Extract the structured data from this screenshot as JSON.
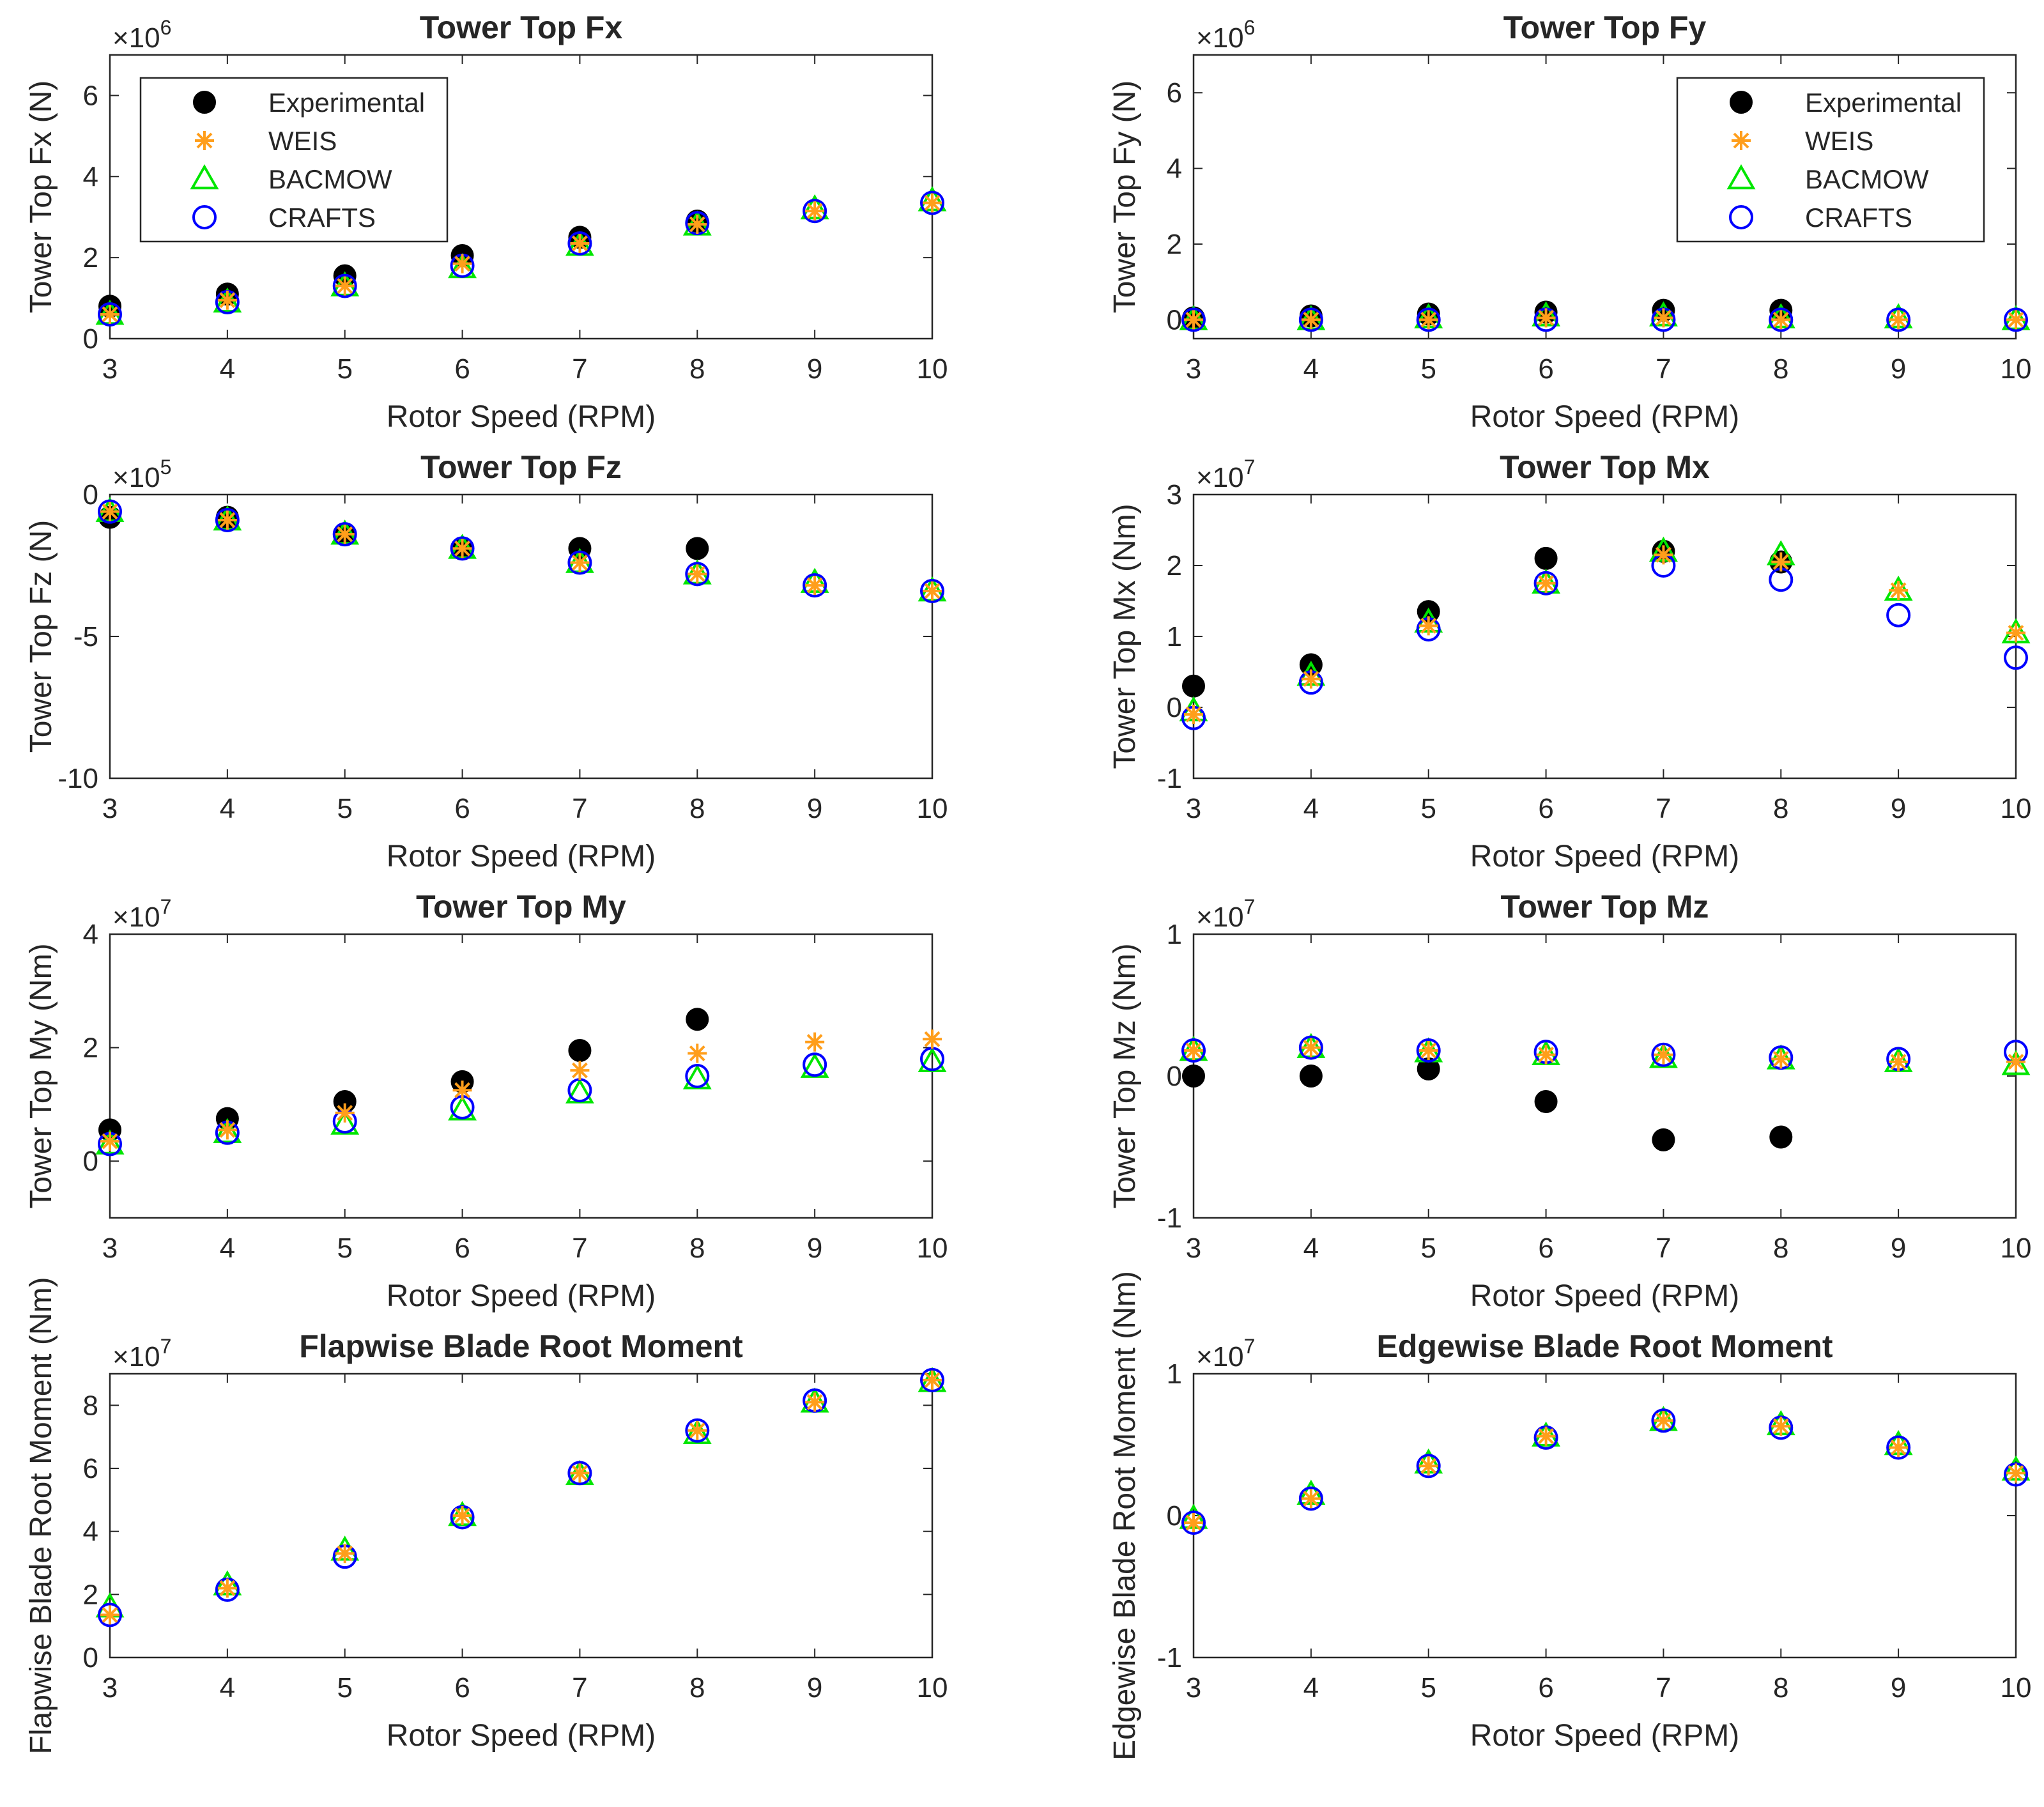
{
  "x_axis_label": "Rotor Speed (RPM)",
  "legend_labels": [
    "Experimental",
    "WEIS",
    "BACMOW",
    "CRAFTS"
  ],
  "series_colors": {
    "Experimental": "#000000",
    "WEIS": "#ff9e1b",
    "BACMOW": "#00e600",
    "CRAFTS": "#0000ff"
  },
  "chart_data": [
    {
      "type": "scatter",
      "title": "Tower Top Fx",
      "xlabel": "Rotor Speed (RPM)",
      "ylabel": "Tower Top Fx (N)",
      "exponent": "×10^6",
      "exp_base": "×10",
      "exp_power": "6",
      "scale": 1000000,
      "xlim": [
        3,
        10
      ],
      "ylim": [
        0,
        7
      ],
      "xticks": [
        3,
        4,
        5,
        6,
        7,
        8,
        9,
        10
      ],
      "yticks": [
        0,
        2,
        4,
        6
      ],
      "legend": "top-left",
      "x": [
        3,
        4,
        5,
        6,
        7,
        8,
        9,
        10
      ],
      "series": [
        {
          "name": "Experimental",
          "values": [
            0.8,
            1.1,
            1.55,
            2.05,
            2.5,
            2.9,
            null,
            null
          ]
        },
        {
          "name": "WEIS",
          "values": [
            0.6,
            0.95,
            1.3,
            1.85,
            2.35,
            2.82,
            3.15,
            3.35
          ]
        },
        {
          "name": "BACMOW",
          "values": [
            0.6,
            0.9,
            1.3,
            1.75,
            2.3,
            2.8,
            3.2,
            3.4
          ]
        },
        {
          "name": "CRAFTS",
          "values": [
            0.6,
            0.9,
            1.3,
            1.8,
            2.35,
            2.85,
            3.15,
            3.35
          ]
        }
      ]
    },
    {
      "type": "scatter",
      "title": "Tower Top Fy",
      "xlabel": "Rotor Speed (RPM)",
      "ylabel": "Tower Top Fy (N)",
      "exponent": "×10^6",
      "exp_base": "×10",
      "exp_power": "6",
      "scale": 1000000,
      "xlim": [
        3,
        10
      ],
      "ylim": [
        -0.5,
        7
      ],
      "xticks": [
        3,
        4,
        5,
        6,
        7,
        8,
        9,
        10
      ],
      "yticks": [
        0,
        2,
        4,
        6
      ],
      "legend": "top-right",
      "x": [
        3,
        4,
        5,
        6,
        7,
        8,
        9,
        10
      ],
      "series": [
        {
          "name": "Experimental",
          "values": [
            0.05,
            0.1,
            0.15,
            0.2,
            0.25,
            0.25,
            null,
            null
          ]
        },
        {
          "name": "WEIS",
          "values": [
            0.0,
            0.0,
            0.0,
            0.05,
            0.05,
            0.0,
            0.0,
            0.0
          ]
        },
        {
          "name": "BACMOW",
          "values": [
            0.0,
            0.0,
            0.05,
            0.1,
            0.1,
            0.05,
            0.05,
            0.0
          ]
        },
        {
          "name": "CRAFTS",
          "values": [
            0.0,
            0.0,
            0.0,
            0.0,
            0.0,
            0.0,
            0.0,
            0.0
          ]
        }
      ]
    },
    {
      "type": "scatter",
      "title": "Tower Top Fz",
      "xlabel": "Rotor Speed (RPM)",
      "ylabel": "Tower Top Fz (N)",
      "exponent": "×10^5",
      "exp_base": "×10",
      "exp_power": "5",
      "scale": 100000,
      "xlim": [
        3,
        10
      ],
      "ylim": [
        -10,
        0
      ],
      "xticks": [
        3,
        4,
        5,
        6,
        7,
        8,
        9,
        10
      ],
      "yticks": [
        -10,
        -5,
        0
      ],
      "x": [
        3,
        4,
        5,
        6,
        7,
        8,
        9,
        10
      ],
      "series": [
        {
          "name": "Experimental",
          "values": [
            -0.8,
            -0.8,
            -1.4,
            -1.9,
            -1.9,
            -1.9,
            null,
            null
          ]
        },
        {
          "name": "WEIS",
          "values": [
            -0.6,
            -0.9,
            -1.4,
            -1.9,
            -2.4,
            -2.8,
            -3.2,
            -3.4
          ]
        },
        {
          "name": "BACMOW",
          "values": [
            -0.6,
            -0.9,
            -1.4,
            -1.9,
            -2.4,
            -2.8,
            -3.1,
            -3.4
          ]
        },
        {
          "name": "CRAFTS",
          "values": [
            -0.6,
            -0.9,
            -1.4,
            -1.9,
            -2.4,
            -2.8,
            -3.2,
            -3.4
          ]
        }
      ]
    },
    {
      "type": "scatter",
      "title": "Tower Top Mx",
      "xlabel": "Rotor Speed (RPM)",
      "ylabel": "Tower Top Mx (Nm)",
      "exponent": "×10^7",
      "exp_base": "×10",
      "exp_power": "7",
      "scale": 10000000,
      "xlim": [
        3,
        10
      ],
      "ylim": [
        -1,
        3
      ],
      "xticks": [
        3,
        4,
        5,
        6,
        7,
        8,
        9,
        10
      ],
      "yticks": [
        -1,
        0,
        1,
        2,
        3
      ],
      "x": [
        3,
        4,
        5,
        6,
        7,
        8,
        9,
        10
      ],
      "series": [
        {
          "name": "Experimental",
          "values": [
            0.3,
            0.6,
            1.35,
            2.1,
            2.2,
            2.05,
            null,
            null
          ]
        },
        {
          "name": "WEIS",
          "values": [
            -0.1,
            0.4,
            1.15,
            1.75,
            2.15,
            2.05,
            1.65,
            1.05
          ]
        },
        {
          "name": "BACMOW",
          "values": [
            -0.05,
            0.45,
            1.2,
            1.75,
            2.2,
            2.15,
            1.65,
            1.05
          ]
        },
        {
          "name": "CRAFTS",
          "values": [
            -0.15,
            0.35,
            1.1,
            1.75,
            2.0,
            1.8,
            1.3,
            0.7
          ]
        }
      ]
    },
    {
      "type": "scatter",
      "title": "Tower Top My",
      "xlabel": "Rotor Speed (RPM)",
      "ylabel": "Tower Top My (Nm)",
      "exponent": "×10^7",
      "exp_base": "×10",
      "exp_power": "7",
      "scale": 10000000,
      "xlim": [
        3,
        10
      ],
      "ylim": [
        -1,
        4
      ],
      "xticks": [
        3,
        4,
        5,
        6,
        7,
        8,
        9,
        10
      ],
      "yticks": [
        0,
        2,
        4
      ],
      "x": [
        3,
        4,
        5,
        6,
        7,
        8,
        9,
        10
      ],
      "series": [
        {
          "name": "Experimental",
          "values": [
            0.55,
            0.75,
            1.05,
            1.4,
            1.95,
            2.5,
            null,
            null
          ]
        },
        {
          "name": "WEIS",
          "values": [
            0.35,
            0.55,
            0.85,
            1.25,
            1.6,
            1.9,
            2.1,
            2.15
          ]
        },
        {
          "name": "BACMOW",
          "values": [
            0.3,
            0.5,
            0.65,
            0.9,
            1.2,
            1.45,
            1.65,
            1.75
          ]
        },
        {
          "name": "CRAFTS",
          "values": [
            0.3,
            0.5,
            0.7,
            0.95,
            1.25,
            1.5,
            1.7,
            1.8
          ]
        }
      ]
    },
    {
      "type": "scatter",
      "title": "Tower Top Mz",
      "xlabel": "Rotor Speed (RPM)",
      "ylabel": "Tower Top Mz (Nm)",
      "exponent": "×10^7",
      "exp_base": "×10",
      "exp_power": "7",
      "scale": 10000000,
      "xlim": [
        3,
        10
      ],
      "ylim": [
        -1,
        1
      ],
      "xticks": [
        3,
        4,
        5,
        6,
        7,
        8,
        9,
        10
      ],
      "yticks": [
        -1,
        0,
        1
      ],
      "x": [
        3,
        4,
        5,
        6,
        7,
        8,
        9,
        10
      ],
      "series": [
        {
          "name": "Experimental",
          "values": [
            0.0,
            0.0,
            0.05,
            -0.18,
            -0.45,
            -0.43,
            null,
            null
          ]
        },
        {
          "name": "WEIS",
          "values": [
            0.18,
            0.2,
            0.18,
            0.15,
            0.15,
            0.12,
            0.1,
            0.1
          ]
        },
        {
          "name": "BACMOW",
          "values": [
            0.18,
            0.2,
            0.17,
            0.15,
            0.13,
            0.12,
            0.1,
            0.08
          ]
        },
        {
          "name": "CRAFTS",
          "values": [
            0.18,
            0.2,
            0.18,
            0.17,
            0.15,
            0.13,
            0.12,
            0.17
          ]
        }
      ]
    },
    {
      "type": "scatter",
      "title": "Flapwise Blade Root Moment",
      "xlabel": "Rotor Speed (RPM)",
      "ylabel": "Flapwise Blade Root Moment (Nm)",
      "exponent": "×10^7",
      "exp_base": "×10",
      "exp_power": "7",
      "scale": 10000000,
      "xlim": [
        3,
        10
      ],
      "ylim": [
        0,
        9
      ],
      "xticks": [
        3,
        4,
        5,
        6,
        7,
        8,
        9,
        10
      ],
      "yticks": [
        0,
        2,
        4,
        6,
        8
      ],
      "x": [
        3,
        4,
        5,
        6,
        7,
        8,
        9,
        10
      ],
      "series": [
        {
          "name": "WEIS",
          "values": [
            1.35,
            2.2,
            3.3,
            4.5,
            5.85,
            7.2,
            8.1,
            8.8
          ]
        },
        {
          "name": "BACMOW",
          "values": [
            1.6,
            2.3,
            3.4,
            4.5,
            5.8,
            7.1,
            8.1,
            8.75
          ]
        },
        {
          "name": "CRAFTS",
          "values": [
            1.35,
            2.15,
            3.2,
            4.45,
            5.85,
            7.2,
            8.15,
            8.8
          ]
        }
      ]
    },
    {
      "type": "scatter",
      "title": "Edgewise Blade Root Moment",
      "xlabel": "Rotor Speed (RPM)",
      "ylabel": "Edgewise Blade Root Moment (Nm)",
      "exponent": "×10^7",
      "exp_base": "×10",
      "exp_power": "7",
      "scale": 10000000,
      "xlim": [
        3,
        10
      ],
      "ylim": [
        -1,
        1
      ],
      "xticks": [
        3,
        4,
        5,
        6,
        7,
        8,
        9,
        10
      ],
      "yticks": [
        -1,
        0,
        1
      ],
      "x": [
        3,
        4,
        5,
        6,
        7,
        8,
        9,
        10
      ],
      "series": [
        {
          "name": "WEIS",
          "values": [
            -0.05,
            0.12,
            0.35,
            0.56,
            0.67,
            0.63,
            0.48,
            0.3
          ]
        },
        {
          "name": "BACMOW",
          "values": [
            -0.02,
            0.15,
            0.37,
            0.56,
            0.67,
            0.64,
            0.5,
            0.32
          ]
        },
        {
          "name": "CRAFTS",
          "values": [
            -0.05,
            0.12,
            0.35,
            0.55,
            0.67,
            0.62,
            0.48,
            0.29
          ]
        }
      ]
    }
  ]
}
